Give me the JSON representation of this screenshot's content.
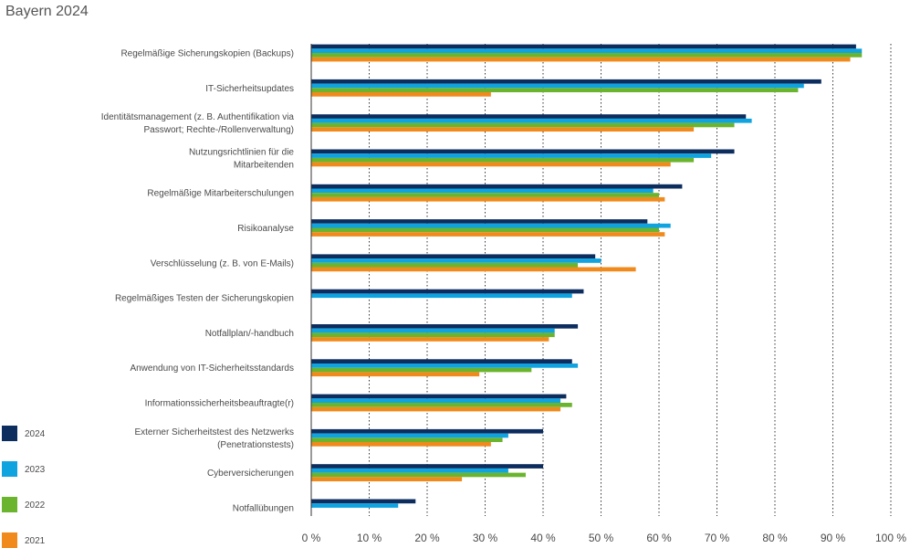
{
  "title": "Bayern 2024",
  "chart_data": {
    "type": "bar",
    "orientation": "horizontal",
    "categories": [
      [
        "Regelmäßige Sicherungskopien (Backups)"
      ],
      [
        "IT-Sicherheitsupdates"
      ],
      [
        "Identitätsmanagement (z. B. Authentifikation via",
        "Passwort; Rechte-/Rollenverwaltung)"
      ],
      [
        "Nutzungsrichtlinien für die",
        "Mitarbeitenden"
      ],
      [
        "Regelmäßige Mitarbeiterschulungen"
      ],
      [
        "Risikoanalyse"
      ],
      [
        "Verschlüsselung (z. B. von E-Mails)"
      ],
      [
        "Regelmäßiges Testen der Sicherungskopien"
      ],
      [
        "Notfallplan/-handbuch"
      ],
      [
        "Anwendung von IT-Sicherheitsstandards"
      ],
      [
        "Informationssicherheitsbeauftragte(r)"
      ],
      [
        "Externer Sicherheitstest des Netzwerks",
        "(Penetrationstests)"
      ],
      [
        "Cyberversicherungen"
      ],
      [
        "Notfallübungen"
      ]
    ],
    "series": [
      {
        "name": "2024",
        "color": "#0d2d5e",
        "values": [
          94,
          88,
          75,
          73,
          64,
          58,
          49,
          47,
          46,
          45,
          44,
          40,
          40,
          18
        ]
      },
      {
        "name": "2023",
        "color": "#0fa3e0",
        "values": [
          95,
          85,
          76,
          69,
          59,
          62,
          50,
          45,
          42,
          46,
          43,
          34,
          34,
          15
        ]
      },
      {
        "name": "2022",
        "color": "#6bb42d",
        "values": [
          95,
          84,
          73,
          66,
          60,
          60,
          46,
          null,
          42,
          38,
          45,
          33,
          37,
          null
        ]
      },
      {
        "name": "2021",
        "color": "#f08a1c",
        "values": [
          93,
          31,
          66,
          62,
          61,
          61,
          56,
          null,
          41,
          29,
          43,
          31,
          26,
          null
        ]
      }
    ],
    "xlim": [
      0,
      100
    ],
    "ticks": [
      0,
      10,
      20,
      30,
      40,
      50,
      60,
      70,
      80,
      90,
      100
    ],
    "tick_labels": [
      "0 %",
      "10 %",
      "20 %",
      "30 %",
      "40 %",
      "50 %",
      "60 %",
      "70 %",
      "80 %",
      "90 %",
      "100 %"
    ],
    "grid": "vertical dotted",
    "legend": "bottom-left"
  }
}
